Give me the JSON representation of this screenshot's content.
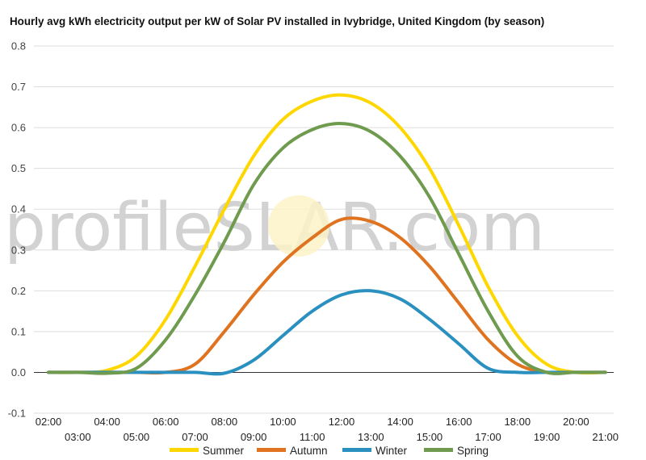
{
  "chart_data": {
    "type": "line",
    "title": "Hourly avg kWh electricity output per kW of Solar PV installed in Ivybridge, United Kingdom (by season)",
    "xlabel": "",
    "ylabel": "",
    "ylim": [
      -0.1,
      0.8
    ],
    "yticks": [
      "0.8",
      "0.7",
      "0.6",
      "0.5",
      "0.4",
      "0.3",
      "0.2",
      "0.1",
      "0.0",
      "-0.1"
    ],
    "x": [
      "02:00",
      "03:00",
      "04:00",
      "05:00",
      "06:00",
      "07:00",
      "08:00",
      "09:00",
      "10:00",
      "11:00",
      "12:00",
      "13:00",
      "14:00",
      "15:00",
      "16:00",
      "17:00",
      "18:00",
      "19:00",
      "20:00",
      "21:00"
    ],
    "grid": true,
    "legend_position": "bottom",
    "series": [
      {
        "name": "Summer",
        "color": "#FFD700",
        "values": [
          0.0,
          0.0,
          0.005,
          0.04,
          0.13,
          0.26,
          0.4,
          0.53,
          0.62,
          0.665,
          0.68,
          0.66,
          0.6,
          0.5,
          0.36,
          0.21,
          0.09,
          0.02,
          0.0,
          0.0
        ]
      },
      {
        "name": "Autumn",
        "color": "#E0731F",
        "values": [
          0.0,
          0.0,
          0.0,
          0.0,
          0.0,
          0.02,
          0.1,
          0.19,
          0.27,
          0.33,
          0.375,
          0.37,
          0.33,
          0.26,
          0.17,
          0.08,
          0.02,
          0.0,
          0.0,
          0.0
        ]
      },
      {
        "name": "Winter",
        "color": "#2A90C0",
        "values": [
          0.0,
          0.0,
          0.0,
          0.0,
          0.0,
          0.0,
          -0.002,
          0.03,
          0.09,
          0.15,
          0.19,
          0.2,
          0.18,
          0.13,
          0.07,
          0.01,
          0.0,
          0.0,
          0.0,
          0.0
        ]
      },
      {
        "name": "Spring",
        "color": "#6E9B4E",
        "values": [
          0.0,
          0.0,
          -0.002,
          0.01,
          0.08,
          0.19,
          0.32,
          0.46,
          0.55,
          0.595,
          0.61,
          0.59,
          0.53,
          0.43,
          0.29,
          0.15,
          0.04,
          0.0,
          0.0,
          0.0
        ]
      }
    ]
  },
  "watermark": {
    "part1": "profile",
    "part2": "S",
    "part3": "LAR.com"
  }
}
